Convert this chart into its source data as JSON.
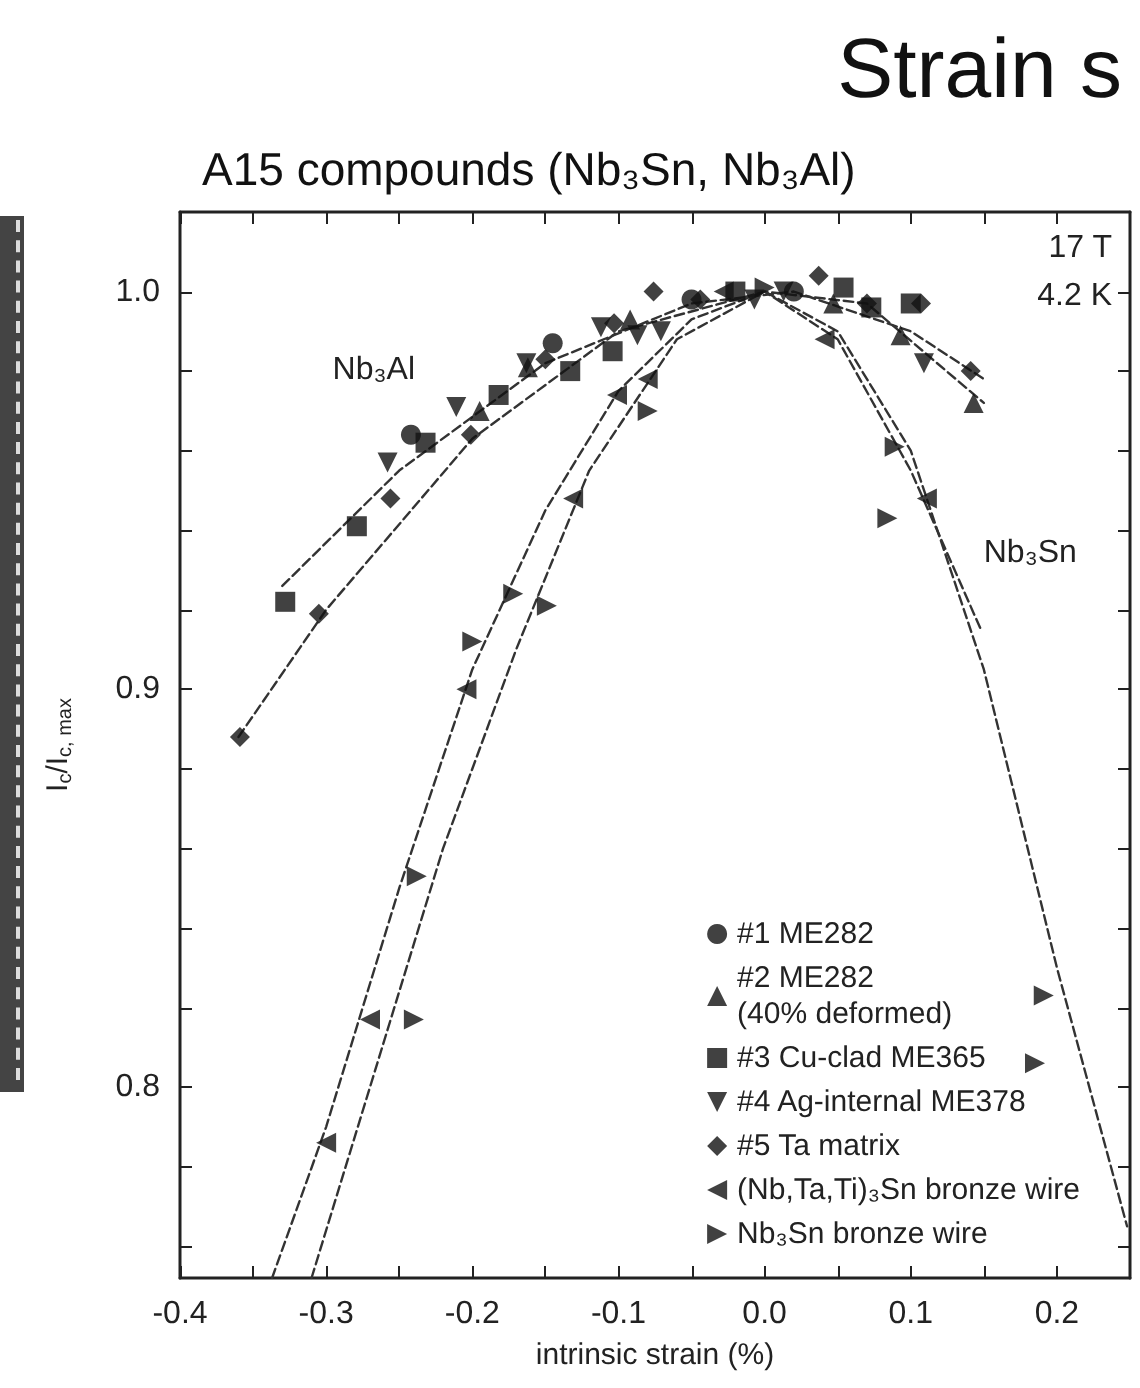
{
  "chart_data": {
    "type": "scatter",
    "title": "Strain s",
    "subtitle": "A15 compounds (Nb₃Sn, Nb₃Al)",
    "xlabel": "intrinsic strain (%)",
    "ylabel": "I$_{c}$/I$_{c, max}$",
    "xlim": [
      -0.4,
      0.25
    ],
    "ylim": [
      0.752,
      1.02
    ],
    "xticks": [
      -0.4,
      {
        "value": -0.35,
        "label": null
      },
      -0.3,
      {
        "value": -0.25,
        "label": null
      },
      -0.2,
      {
        "value": -0.15,
        "label": null
      },
      -0.1,
      {
        "value": -0.05,
        "label": null
      },
      {
        "value": 0,
        "label": "0.0"
      },
      {
        "value": 0.05,
        "label": null
      },
      0.1,
      {
        "value": 0.15,
        "label": null
      },
      0.2
    ],
    "yticks": [
      {
        "value": 0.76,
        "label": null
      },
      {
        "value": 0.78,
        "label": null
      },
      0.8,
      {
        "value": 0.82,
        "label": null
      },
      {
        "value": 0.84,
        "label": null
      },
      {
        "value": 0.86,
        "label": null
      },
      {
        "value": 0.88,
        "label": null
      },
      0.9,
      {
        "value": 0.92,
        "label": null
      },
      {
        "value": 0.94,
        "label": null
      },
      {
        "value": 0.96,
        "label": null
      },
      {
        "value": 0.98,
        "label": null
      },
      {
        "value": 1.0,
        "label": "1.0"
      }
    ],
    "legend": "bottom right",
    "annotations": [
      "Nb₃Al",
      "Nb₃Sn",
      "17 T",
      "4.2 K"
    ],
    "series": [
      {
        "name": "#1 ME282",
        "color": "#111111",
        "marker": "circle",
        "x": [
          -0.242,
          -0.145,
          -0.05,
          0.02
        ],
        "values": [
          0.964,
          0.987,
          0.998,
          1.0
        ]
      },
      {
        "name": "#2 ME282\n(40% deformed)",
        "color": "#111111",
        "marker": "triangle",
        "x": [
          -0.195,
          -0.162,
          -0.092,
          0.047,
          0.093,
          0.143
        ],
        "values": [
          0.97,
          0.981,
          0.993,
          0.997,
          0.989,
          0.972
        ]
      },
      {
        "name": "#3 Cu-clad ME365",
        "color": "#111111",
        "marker": "square",
        "x": [
          -0.328,
          -0.279,
          -0.232,
          -0.182,
          -0.133,
          -0.104,
          -0.02,
          0.054,
          0.073,
          0.1
        ],
        "values": [
          0.922,
          0.941,
          0.962,
          0.974,
          0.98,
          0.985,
          1.0,
          1.001,
          0.996,
          0.997
        ]
      },
      {
        "name": "#4 Ag-internal ME378",
        "color": "#111111",
        "marker": "triangle-down",
        "x": [
          -0.258,
          -0.211,
          -0.163,
          -0.112,
          -0.087,
          -0.071,
          -0.007,
          0.013,
          0.109
        ],
        "values": [
          0.957,
          0.971,
          0.982,
          0.991,
          0.989,
          0.99,
          0.998,
          1.0,
          0.982
        ]
      },
      {
        "name": "#5 Ta matrix",
        "color": "#111111",
        "marker": "diamond",
        "x": [
          -0.359,
          -0.305,
          -0.256,
          -0.201,
          -0.15,
          -0.103,
          -0.076,
          -0.044,
          0.037,
          0.07,
          0.107,
          0.141
        ],
        "values": [
          0.888,
          0.919,
          0.948,
          0.964,
          0.983,
          0.992,
          1.0,
          0.998,
          1.004,
          0.997,
          0.997,
          0.98
        ]
      },
      {
        "name": "(Nb,Ta,Ti)₃Sn bronze wire",
        "color": "#111111",
        "marker": "triangle-left",
        "x": [
          -0.3,
          -0.27,
          -0.204,
          -0.131,
          -0.101,
          -0.08,
          -0.028,
          0.041,
          0.111
        ],
        "values": [
          0.786,
          0.817,
          0.9,
          0.948,
          0.974,
          0.978,
          1.0,
          0.988,
          0.948
        ]
      },
      {
        "name": "Nb₃Sn bronze wire",
        "color": "#111111",
        "marker": "triangle-right",
        "x": [
          -0.24,
          -0.238,
          -0.2,
          -0.172,
          -0.149,
          -0.08,
          0.0,
          0.084,
          0.089,
          0.185,
          0.191
        ],
        "values": [
          0.817,
          0.853,
          0.912,
          0.924,
          0.921,
          0.97,
          1.001,
          0.943,
          0.961,
          0.806,
          0.823
        ]
      },
      {
        "type": "line",
        "color": "#333333",
        "line_style": "dashed",
        "marker": "none",
        "x": [
          -0.337,
          -0.3,
          -0.25,
          -0.2,
          -0.15,
          -0.1,
          -0.05,
          0,
          0.05,
          0.1,
          0.15,
          0.2,
          0.248
        ],
        "values": [
          0.752,
          0.79,
          0.85,
          0.905,
          0.945,
          0.975,
          0.993,
          1.0,
          0.99,
          0.96,
          0.905,
          0.83,
          0.765
        ]
      },
      {
        "type": "line",
        "color": "#333333",
        "line_style": "dashed",
        "marker": "none",
        "x": [
          -0.31,
          -0.27,
          -0.22,
          -0.17,
          -0.12,
          -0.06,
          0,
          0.05,
          0.1,
          0.148
        ],
        "values": [
          0.752,
          0.8,
          0.86,
          0.91,
          0.955,
          0.988,
          1.0,
          0.988,
          0.955,
          0.915
        ]
      },
      {
        "type": "line",
        "color": "#333333",
        "line_style": "dashed",
        "marker": "none",
        "x": [
          -0.36,
          -0.3,
          -0.2,
          -0.1,
          0,
          0.07,
          0.15
        ],
        "values": [
          0.888,
          0.92,
          0.963,
          0.99,
          1.0,
          0.997,
          0.972
        ]
      },
      {
        "type": "line",
        "color": "#333333",
        "line_style": "dashed",
        "marker": "none",
        "x": [
          -0.33,
          -0.25,
          -0.15,
          -0.05,
          0.02,
          0.1,
          0.15
        ],
        "values": [
          0.926,
          0.955,
          0.982,
          0.997,
          1.0,
          0.99,
          0.978
        ]
      }
    ]
  }
}
